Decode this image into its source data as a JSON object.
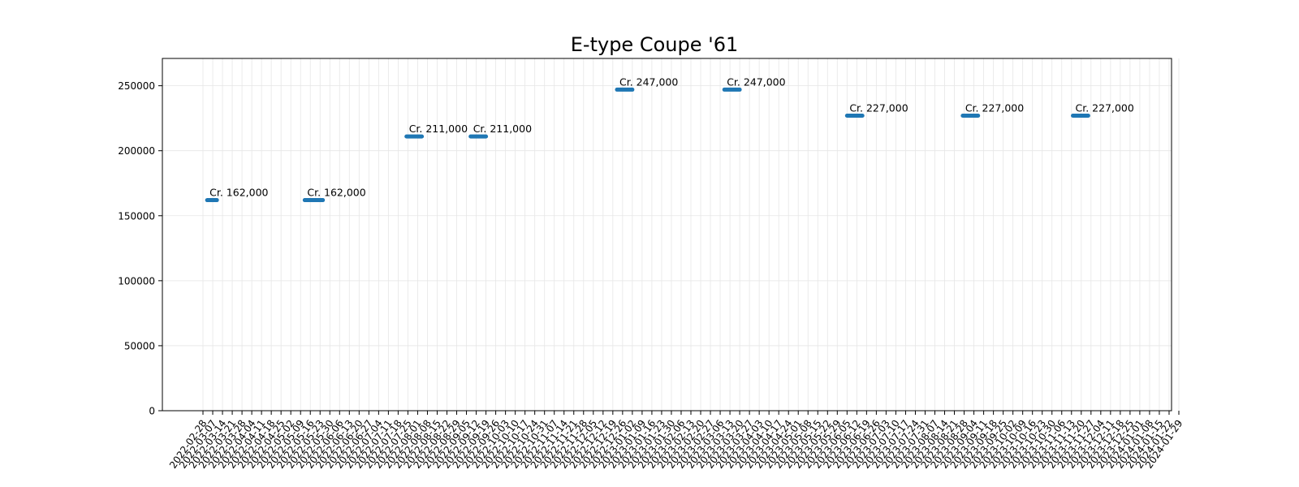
{
  "chart_data": {
    "type": "line",
    "title": "E-type Coupe '61",
    "xlabel": "",
    "ylabel": "",
    "ylim": [
      0,
      271000
    ],
    "y_ticks": [
      0,
      50000,
      100000,
      150000,
      200000,
      250000
    ],
    "grid": true,
    "line_color": "#1f77b4",
    "x_ticks": [
      "2022-02-28",
      "2022-03-07",
      "2022-03-14",
      "2022-03-21",
      "2022-03-28",
      "2022-04-04",
      "2022-04-11",
      "2022-04-18",
      "2022-04-25",
      "2022-05-02",
      "2022-05-09",
      "2022-05-16",
      "2022-05-23",
      "2022-05-30",
      "2022-06-06",
      "2022-06-13",
      "2022-06-20",
      "2022-06-27",
      "2022-07-04",
      "2022-07-11",
      "2022-07-18",
      "2022-07-25",
      "2022-08-01",
      "2022-08-08",
      "2022-08-15",
      "2022-08-22",
      "2022-08-29",
      "2022-09-05",
      "2022-09-12",
      "2022-09-19",
      "2022-09-26",
      "2022-10-03",
      "2022-10-10",
      "2022-10-17",
      "2022-10-24",
      "2022-10-31",
      "2022-11-07",
      "2022-11-14",
      "2022-11-21",
      "2022-11-28",
      "2022-12-05",
      "2022-12-12",
      "2022-12-19",
      "2022-12-26",
      "2023-01-02",
      "2023-01-09",
      "2023-01-16",
      "2023-01-23",
      "2023-01-30",
      "2023-02-06",
      "2023-02-13",
      "2023-02-20",
      "2023-02-27",
      "2023-03-06",
      "2023-03-13",
      "2023-03-20",
      "2023-03-27",
      "2023-04-03",
      "2023-04-10",
      "2023-04-17",
      "2023-04-24",
      "2023-05-01",
      "2023-05-08",
      "2023-05-15",
      "2023-05-22",
      "2023-05-29",
      "2023-06-05",
      "2023-06-12",
      "2023-06-19",
      "2023-06-26",
      "2023-07-03",
      "2023-07-10",
      "2023-07-17",
      "2023-07-24",
      "2023-07-31",
      "2023-08-07",
      "2023-08-14",
      "2023-08-21",
      "2023-08-28",
      "2023-09-04",
      "2023-09-11",
      "2023-09-18",
      "2023-09-25",
      "2023-10-02",
      "2023-10-09",
      "2023-10-16",
      "2023-10-23",
      "2023-10-30",
      "2023-11-06",
      "2023-11-13",
      "2023-11-20",
      "2023-11-27",
      "2023-12-04",
      "2023-12-11",
      "2023-12-18",
      "2023-12-25",
      "2024-01-01",
      "2024-01-08",
      "2024-01-15",
      "2024-01-22",
      "2024-01-29"
    ],
    "segments": [
      {
        "start": "2022-03-03",
        "end": "2022-03-10",
        "value": 162000,
        "label": "Cr. 162,000"
      },
      {
        "start": "2022-05-12",
        "end": "2022-05-25",
        "value": 162000,
        "label": "Cr. 162,000"
      },
      {
        "start": "2022-07-24",
        "end": "2022-08-04",
        "value": 211000,
        "label": "Cr. 211,000"
      },
      {
        "start": "2022-09-08",
        "end": "2022-09-19",
        "value": 211000,
        "label": "Cr. 211,000"
      },
      {
        "start": "2022-12-22",
        "end": "2023-01-02",
        "value": 247000,
        "label": "Cr. 247,000"
      },
      {
        "start": "2023-03-09",
        "end": "2023-03-20",
        "value": 247000,
        "label": "Cr. 247,000"
      },
      {
        "start": "2023-06-05",
        "end": "2023-06-16",
        "value": 227000,
        "label": "Cr. 227,000"
      },
      {
        "start": "2023-08-27",
        "end": "2023-09-07",
        "value": 227000,
        "label": "Cr. 227,000"
      },
      {
        "start": "2023-11-14",
        "end": "2023-11-25",
        "value": 227000,
        "label": "Cr. 227,000"
      }
    ]
  }
}
